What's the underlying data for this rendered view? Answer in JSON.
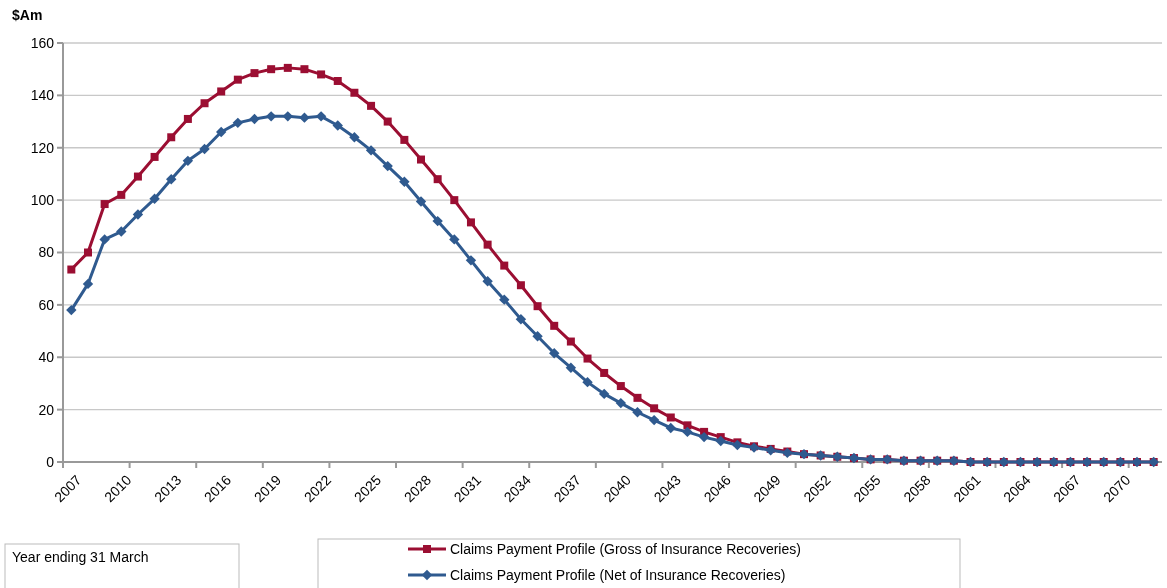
{
  "chart_data": {
    "type": "line",
    "ylabel": "$Am",
    "xlabel": "Year ending 31 March",
    "categories": [
      "2007",
      null,
      null,
      "2010",
      null,
      null,
      "2013",
      null,
      null,
      "2016",
      null,
      null,
      "2019",
      null,
      null,
      "2022",
      null,
      null,
      "2025",
      null,
      null,
      "2028",
      null,
      null,
      "2031",
      null,
      null,
      "2034",
      null,
      null,
      "2037",
      null,
      null,
      "2040",
      null,
      null,
      "2043",
      null,
      null,
      "2046",
      null,
      null,
      "2049",
      null,
      null,
      "2052",
      null,
      null,
      "2055",
      null,
      null,
      "2058",
      null,
      null,
      "2061",
      null,
      null,
      "2064",
      null,
      null,
      "2067",
      null,
      null,
      "2070",
      null,
      null
    ],
    "series": [
      {
        "name": "Claims Payment Profile (Gross of Insurance Recoveries)",
        "color": "#9b0e32",
        "marker": "square",
        "values": [
          73.5,
          80,
          98.5,
          102,
          109,
          116.5,
          124,
          131,
          137,
          141.5,
          146,
          148.5,
          150,
          150.5,
          150,
          148,
          145.5,
          141,
          136,
          130,
          123,
          115.5,
          108,
          100,
          91.5,
          83,
          75,
          67.5,
          59.5,
          52,
          46,
          39.5,
          34,
          29,
          24.5,
          20.5,
          17,
          14,
          11.5,
          9.5,
          7.5,
          6,
          5,
          4,
          3,
          2.5,
          2,
          1.5,
          1,
          1,
          0.5,
          0.5,
          0.5,
          0.5,
          0,
          0,
          0,
          0,
          0,
          0,
          0,
          0,
          0,
          0,
          0,
          0
        ]
      },
      {
        "name": "Claims Payment Profile (Net of Insurance Recoveries)",
        "color": "#2f5a8f",
        "marker": "diamond",
        "values": [
          58,
          68,
          85,
          88,
          94.5,
          100.5,
          108,
          115,
          119.5,
          126,
          129.5,
          131,
          132,
          132,
          131.5,
          132,
          128.5,
          124,
          119,
          113,
          107,
          99.5,
          92,
          85,
          77,
          69,
          62,
          54.5,
          48,
          41.5,
          36,
          30.5,
          26,
          22.5,
          19,
          16,
          13,
          11.5,
          9.5,
          8,
          6.5,
          5.5,
          4.5,
          3.5,
          3,
          2.5,
          2,
          1.5,
          1,
          1,
          0.5,
          0.5,
          0.5,
          0.5,
          0,
          0,
          0,
          0,
          0,
          0,
          0,
          0,
          0,
          0,
          0,
          0
        ]
      }
    ],
    "ylim": [
      0,
      160
    ],
    "yticks": [
      0,
      20,
      40,
      60,
      80,
      100,
      120,
      140,
      160
    ],
    "grid": "y",
    "legend": "bottom",
    "line_style": "solid"
  }
}
